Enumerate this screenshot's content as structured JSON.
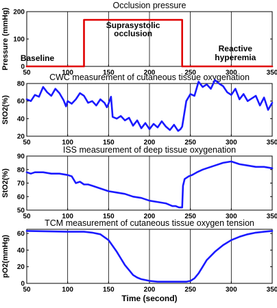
{
  "colors": {
    "occlusion_line": "#e00000",
    "tissue_line": "#1a1aff",
    "grid": "#000000"
  },
  "chart_data": [
    {
      "type": "line",
      "title": "Occlusion pressure",
      "ylabel": "Pressure (mmHg)",
      "xlim": [
        50,
        350
      ],
      "ylim": [
        0,
        200
      ],
      "xticks": [
        50,
        100,
        150,
        200,
        250,
        300,
        350
      ],
      "yticks": [
        0,
        100,
        200
      ],
      "grid": "x",
      "annotations": [
        {
          "text": "Baseline",
          "x": 63,
          "y": 20
        },
        {
          "text": "Suprasystolic",
          "x": 180,
          "y": 140
        },
        {
          "text": "occlusion",
          "x": 180,
          "y": 110
        },
        {
          "text": "Reactive",
          "x": 305,
          "y": 55
        },
        {
          "text": "hyperemia",
          "x": 305,
          "y": 22
        }
      ],
      "series": [
        {
          "x": [
            50,
            120,
            120,
            240,
            240,
            350
          ],
          "y": [
            0,
            0,
            170,
            170,
            0,
            0
          ]
        }
      ]
    },
    {
      "type": "line",
      "title": "CWC measurement of cutaneous tissue oxygenation",
      "ylabel": "StO2(%)",
      "xlim": [
        50,
        350
      ],
      "ylim": [
        20,
        80
      ],
      "xticks": [
        50,
        100,
        150,
        200,
        250,
        300,
        350
      ],
      "yticks": [
        20,
        40,
        60,
        80
      ],
      "grid": "x",
      "series": [
        {
          "x": [
            50,
            55,
            60,
            65,
            70,
            75,
            80,
            85,
            90,
            95,
            98,
            100,
            105,
            110,
            115,
            120,
            125,
            130,
            135,
            140,
            145,
            148,
            150,
            153,
            155,
            160,
            165,
            170,
            175,
            180,
            185,
            190,
            195,
            200,
            205,
            210,
            215,
            220,
            225,
            230,
            235,
            238,
            240,
            245,
            250,
            255,
            260,
            265,
            270,
            275,
            280,
            285,
            290,
            295,
            300,
            305,
            310,
            315,
            320,
            325,
            330,
            335,
            340,
            345,
            350
          ],
          "y": [
            62,
            60,
            67,
            65,
            76,
            70,
            66,
            74,
            69,
            61,
            54,
            60,
            57,
            62,
            69,
            66,
            58,
            60,
            55,
            62,
            58,
            53,
            57,
            65,
            42,
            40,
            43,
            38,
            41,
            32,
            38,
            29,
            35,
            28,
            34,
            30,
            37,
            31,
            27,
            33,
            26,
            28,
            31,
            60,
            68,
            66,
            82,
            76,
            79,
            74,
            84,
            80,
            77,
            70,
            67,
            74,
            62,
            68,
            60,
            63,
            66,
            55,
            64,
            50,
            58
          ]
        }
      ]
    },
    {
      "type": "line",
      "title": "ISS measurement of deep tissue oxygenation",
      "ylabel": "StO2(%)",
      "xlim": [
        50,
        350
      ],
      "ylim": [
        50,
        90
      ],
      "xticks": [
        50,
        100,
        150,
        200,
        250,
        300,
        350
      ],
      "yticks": [
        50,
        60,
        70,
        80,
        90
      ],
      "grid": "x",
      "series": [
        {
          "x": [
            50,
            55,
            60,
            70,
            80,
            90,
            100,
            105,
            110,
            115,
            120,
            125,
            130,
            140,
            150,
            160,
            170,
            180,
            190,
            200,
            210,
            220,
            228,
            232,
            236,
            238,
            240,
            241,
            243,
            248,
            252,
            258,
            265,
            270,
            275,
            280,
            290,
            300,
            310,
            320,
            330,
            340,
            350
          ],
          "y": [
            78,
            77,
            78,
            78,
            77,
            77,
            76,
            75,
            70,
            71,
            69,
            69,
            68,
            66,
            64,
            63,
            62,
            60,
            59,
            57,
            56,
            55,
            53,
            53,
            52,
            52,
            52,
            68,
            73,
            75,
            76,
            78,
            80,
            81,
            82,
            83,
            85,
            86,
            84,
            83,
            82,
            82,
            81
          ]
        }
      ]
    },
    {
      "type": "line",
      "title": "TCM measurement of cutaneous tissue oxygen tension",
      "ylabel": "pO2(mmHg)",
      "xlabel": "Time (second)",
      "xlim": [
        50,
        350
      ],
      "ylim": [
        0,
        65
      ],
      "xticks": [
        50,
        100,
        150,
        200,
        250,
        300,
        350
      ],
      "yticks": [
        0,
        20,
        40,
        60
      ],
      "grid": "x",
      "series": [
        {
          "x": [
            50,
            100,
            110,
            120,
            130,
            140,
            150,
            155,
            160,
            165,
            170,
            175,
            180,
            185,
            190,
            200,
            210,
            220,
            230,
            240,
            245,
            250,
            255,
            260,
            265,
            270,
            280,
            290,
            300,
            310,
            320,
            330,
            340,
            350
          ],
          "y": [
            63,
            62,
            62,
            62,
            61,
            59,
            52,
            45,
            38,
            30,
            22,
            16,
            10,
            7,
            5,
            3,
            2,
            2,
            2,
            2,
            2,
            3,
            6,
            12,
            20,
            28,
            38,
            46,
            52,
            56,
            59,
            61,
            62,
            63
          ]
        }
      ]
    }
  ]
}
